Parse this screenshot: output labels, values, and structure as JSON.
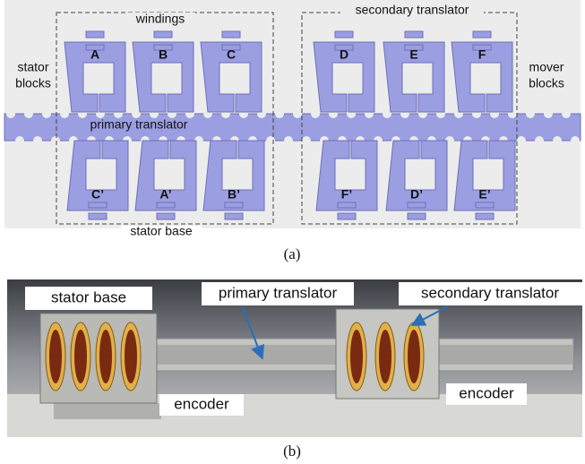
{
  "panel_a": {
    "windings": "windings",
    "stator_blocks": [
      "stator",
      "blocks"
    ],
    "mover_blocks": [
      "mover",
      "blocks"
    ],
    "secondary_translator": "secondary translator",
    "primary_translator": "primary translator",
    "stator_base": "stator base",
    "top_blocks": [
      "A",
      "B",
      "C",
      "D",
      "E",
      "F"
    ],
    "bottom_blocks": [
      "C’",
      "A’",
      "B’",
      "F’",
      "D’",
      "E’"
    ],
    "caption": "(a)"
  },
  "panel_b": {
    "stator_base": "stator base",
    "primary_translator": "primary translator",
    "secondary_translator": "secondary translator",
    "encoder_left": "encoder",
    "encoder_right": "encoder",
    "caption": "(b)"
  }
}
